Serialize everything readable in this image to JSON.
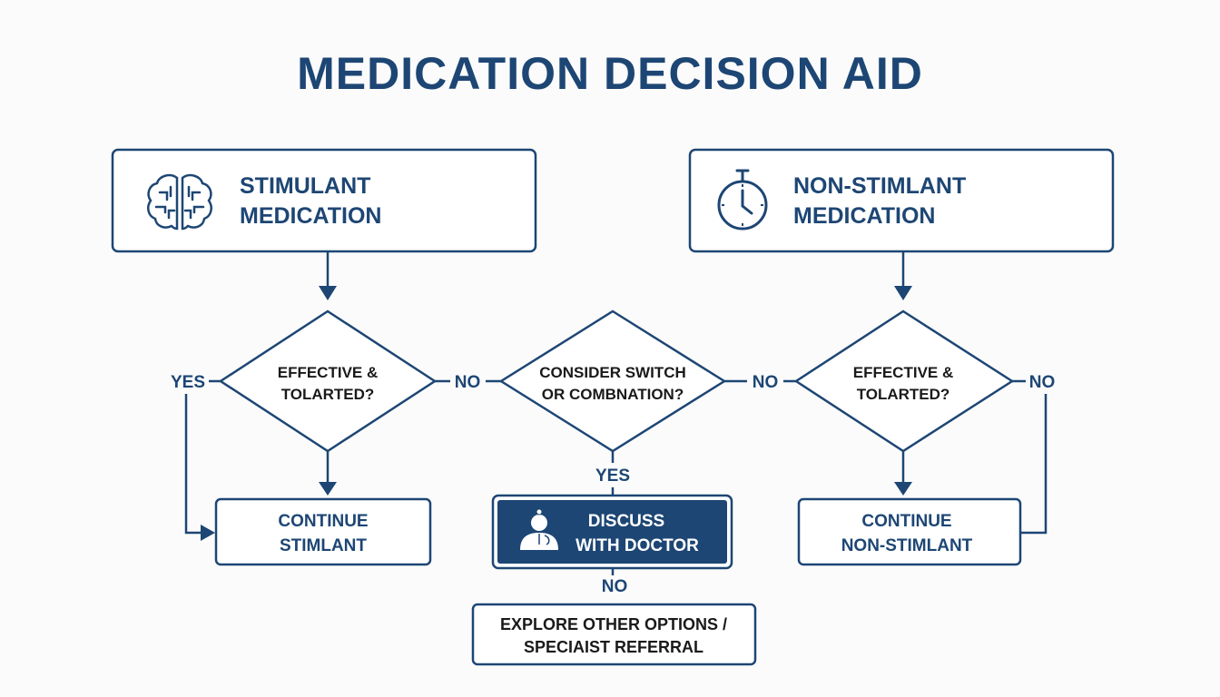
{
  "title": "MEDICATION DECISION AID",
  "colors": {
    "primary": "#1d4674",
    "background": "#fbfbfb"
  },
  "nodes": {
    "stimulant": {
      "line1": "STIMULANT",
      "line2": "MEDICATION",
      "icon": "brain-icon"
    },
    "non_stimulant": {
      "line1": "NON-STIMLANT",
      "line2": "MEDICATION",
      "icon": "stopwatch-icon"
    },
    "decision_left": {
      "line1": "EFFECTIVE &",
      "line2": "TOLARTED?"
    },
    "decision_middle": {
      "line1": "CONSIDER SWITCH",
      "line2": "OR COMBNATION?"
    },
    "decision_right": {
      "line1": "EFFECTIVE &",
      "line2": "TOLARTED?"
    },
    "continue_stimulant": {
      "line1": "CONTINUE",
      "line2": "STIMLANT"
    },
    "discuss_doctor": {
      "line1": "DISCUSS",
      "line2": "WITH DOCTOR",
      "icon": "doctor-icon"
    },
    "continue_non_stimulant": {
      "line1": "CONTINUE",
      "line2": "NON-STIMLANT"
    },
    "explore": {
      "line1": "EXPLORE OTHER OPTIONS /",
      "line2": "SPECIAIST REFERRAL"
    }
  },
  "edge_labels": {
    "left_yes": "YES",
    "left_no": "NO",
    "middle_no": "NO",
    "middle_yes": "YES",
    "right_no": "NO",
    "discuss_no": "NO"
  }
}
